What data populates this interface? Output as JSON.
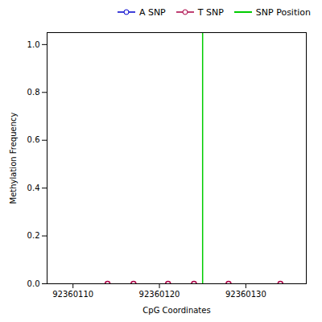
{
  "chart_data": {
    "type": "line",
    "xlabel": "CpG Coordinates",
    "ylabel": "Methylation Frequency",
    "xlim": [
      92360107,
      92360137
    ],
    "ylim": [
      0.0,
      1.05
    ],
    "xticks": [
      92360110,
      92360120,
      92360130
    ],
    "yticks": [
      {
        "value": 0.0,
        "label": "0.0"
      },
      0.2,
      0.4,
      0.6,
      0.8,
      {
        "value": 1.0,
        "label": "1.0"
      }
    ],
    "grid": false,
    "legend": "upper right",
    "marker": "circle",
    "series": [
      {
        "name": "A SNP",
        "color": "#0000cc",
        "x": [],
        "values": []
      },
      {
        "name": "T SNP",
        "color": "#aa0044",
        "x": [
          92360114,
          92360117,
          92360121,
          92360124,
          92360128,
          92360134
        ],
        "values": [
          0.0,
          0.0,
          0.0,
          0.0,
          0.0,
          0.0
        ]
      }
    ],
    "vline": {
      "x": 92360125,
      "name": "SNP Position",
      "color": "#00cc00"
    }
  }
}
